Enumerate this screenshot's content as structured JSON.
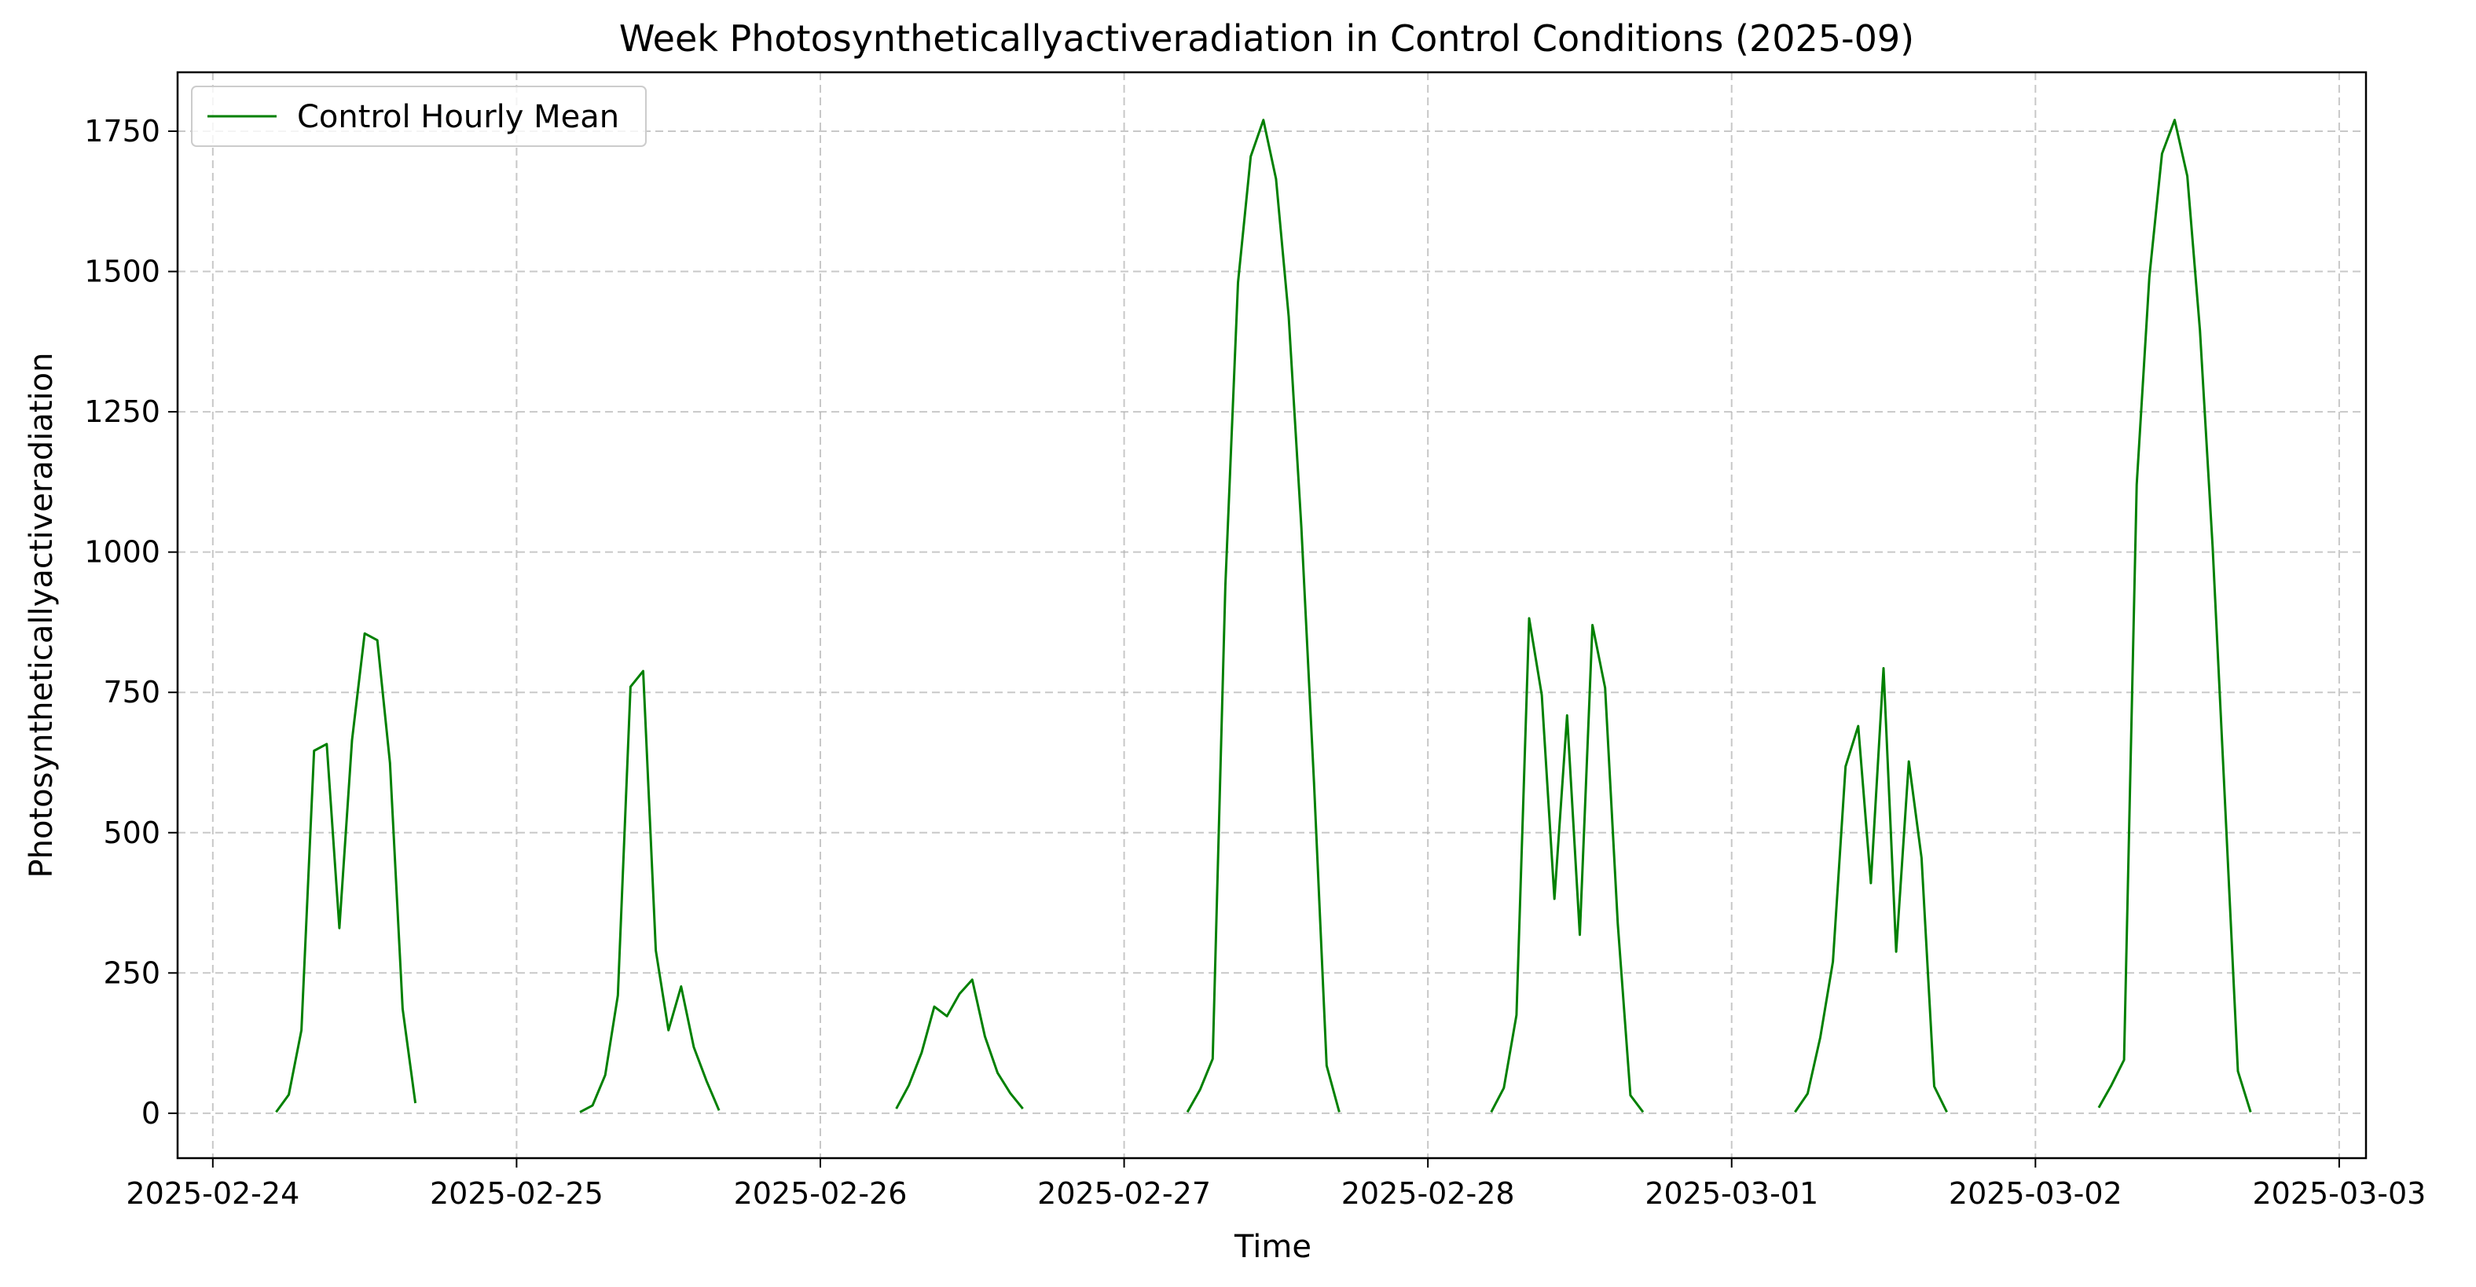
{
  "chart_data": {
    "type": "line",
    "title": "Week Photosyntheticallyactiveradiation in Control Conditions (2025-09)",
    "xlabel": "Time",
    "ylabel": "Photosyntheticallyactiveradiation",
    "xlim": [
      "2025-02-23T21:13",
      "2025-03-03T02:07"
    ],
    "ylim": [
      -80,
      1855
    ],
    "x_ticks": [
      "2025-02-24",
      "2025-02-25",
      "2025-02-26",
      "2025-02-27",
      "2025-02-28",
      "2025-03-01",
      "2025-03-02",
      "2025-03-03"
    ],
    "y_ticks": [
      0,
      250,
      500,
      750,
      1000,
      1250,
      1500,
      1750
    ],
    "grid": true,
    "legend": {
      "position": "top-left",
      "entries": [
        "Control Hourly Mean"
      ]
    },
    "series": [
      {
        "name": "Control Hourly Mean",
        "color": "#008000",
        "points": [
          [
            "2025-02-24T05:00",
            2
          ],
          [
            "2025-02-24T06:00",
            33
          ],
          [
            "2025-02-24T07:00",
            148
          ],
          [
            "2025-02-24T08:00",
            646
          ],
          [
            "2025-02-24T09:00",
            658
          ],
          [
            "2025-02-24T10:00",
            330
          ],
          [
            "2025-02-24T11:00",
            665
          ],
          [
            "2025-02-24T12:00",
            855
          ],
          [
            "2025-02-24T13:00",
            843
          ],
          [
            "2025-02-24T14:00",
            624
          ],
          [
            "2025-02-24T15:00",
            186
          ],
          [
            "2025-02-24T16:00",
            18
          ],
          null,
          [
            "2025-02-25T05:00",
            2
          ],
          [
            "2025-02-25T06:00",
            14
          ],
          [
            "2025-02-25T07:00",
            68
          ],
          [
            "2025-02-25T08:00",
            210
          ],
          [
            "2025-02-25T09:00",
            760
          ],
          [
            "2025-02-25T10:00",
            788
          ],
          [
            "2025-02-25T11:00",
            290
          ],
          [
            "2025-02-25T12:00",
            148
          ],
          [
            "2025-02-25T13:00",
            226
          ],
          [
            "2025-02-25T14:00",
            118
          ],
          [
            "2025-02-25T15:00",
            58
          ],
          [
            "2025-02-25T16:00",
            5
          ],
          null,
          [
            "2025-02-26T06:00",
            8
          ],
          [
            "2025-02-26T07:00",
            50
          ],
          [
            "2025-02-26T08:00",
            108
          ],
          [
            "2025-02-26T09:00",
            190
          ],
          [
            "2025-02-26T10:00",
            173
          ],
          [
            "2025-02-26T11:00",
            213
          ],
          [
            "2025-02-26T12:00",
            238
          ],
          [
            "2025-02-26T13:00",
            137
          ],
          [
            "2025-02-26T14:00",
            72
          ],
          [
            "2025-02-26T15:00",
            36
          ],
          [
            "2025-02-26T16:00",
            8
          ],
          null,
          [
            "2025-02-27T05:00",
            2
          ],
          [
            "2025-02-27T06:00",
            42
          ],
          [
            "2025-02-27T07:00",
            97
          ],
          [
            "2025-02-27T08:00",
            940
          ],
          [
            "2025-02-27T09:00",
            1480
          ],
          [
            "2025-02-27T10:00",
            1705
          ],
          [
            "2025-02-27T11:00",
            1770
          ],
          [
            "2025-02-27T12:00",
            1665
          ],
          [
            "2025-02-27T13:00",
            1420
          ],
          [
            "2025-02-27T14:00",
            1045
          ],
          [
            "2025-02-27T15:00",
            590
          ],
          [
            "2025-02-27T16:00",
            85
          ],
          [
            "2025-02-27T17:00",
            2
          ],
          null,
          [
            "2025-02-28T05:00",
            2
          ],
          [
            "2025-02-28T06:00",
            45
          ],
          [
            "2025-02-28T07:00",
            175
          ],
          [
            "2025-02-28T08:00",
            882
          ],
          [
            "2025-02-28T09:00",
            745
          ],
          [
            "2025-02-28T10:00",
            382
          ],
          [
            "2025-02-28T11:00",
            709
          ],
          [
            "2025-02-28T12:00",
            318
          ],
          [
            "2025-02-28T13:00",
            870
          ],
          [
            "2025-02-28T14:00",
            758
          ],
          [
            "2025-02-28T15:00",
            338
          ],
          [
            "2025-02-28T16:00",
            32
          ],
          [
            "2025-02-28T17:00",
            2
          ],
          null,
          [
            "2025-03-01T05:00",
            2
          ],
          [
            "2025-03-01T06:00",
            35
          ],
          [
            "2025-03-01T07:00",
            135
          ],
          [
            "2025-03-01T08:00",
            270
          ],
          [
            "2025-03-01T09:00",
            618
          ],
          [
            "2025-03-01T10:00",
            690
          ],
          [
            "2025-03-01T11:00",
            410
          ],
          [
            "2025-03-01T12:00",
            793
          ],
          [
            "2025-03-01T13:00",
            288
          ],
          [
            "2025-03-01T14:00",
            627
          ],
          [
            "2025-03-01T15:00",
            455
          ],
          [
            "2025-03-01T16:00",
            48
          ],
          [
            "2025-03-01T17:00",
            2
          ],
          null,
          [
            "2025-03-02T05:00",
            10
          ],
          [
            "2025-03-02T06:00",
            50
          ],
          [
            "2025-03-02T07:00",
            95
          ],
          [
            "2025-03-02T08:00",
            1120
          ],
          [
            "2025-03-02T09:00",
            1490
          ],
          [
            "2025-03-02T10:00",
            1710
          ],
          [
            "2025-03-02T11:00",
            1770
          ],
          [
            "2025-03-02T12:00",
            1670
          ],
          [
            "2025-03-02T13:00",
            1395
          ],
          [
            "2025-03-02T14:00",
            1010
          ],
          [
            "2025-03-02T15:00",
            545
          ],
          [
            "2025-03-02T16:00",
            75
          ],
          [
            "2025-03-02T17:00",
            2
          ]
        ]
      }
    ]
  }
}
